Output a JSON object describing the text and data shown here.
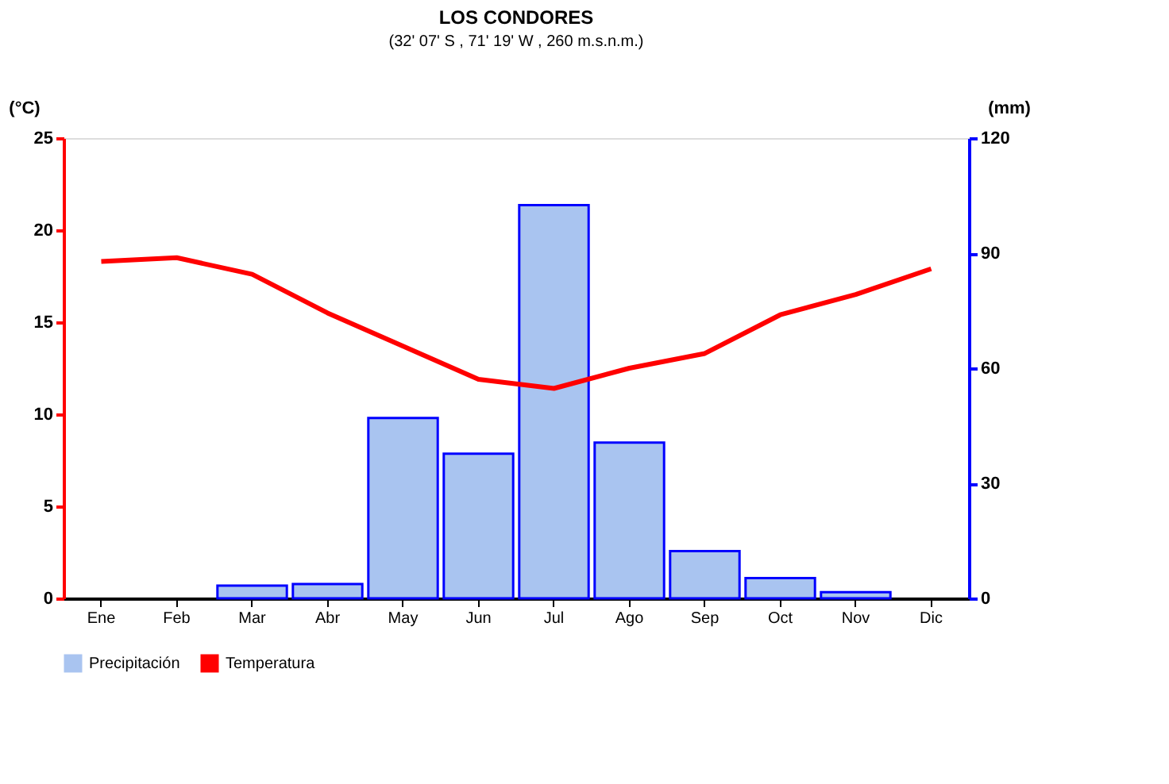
{
  "chart_data": {
    "type": "bar",
    "title": "LOS CONDORES",
    "subtitle": "(32' 07' S , 71' 19' W , 260 m.s.n.m.)",
    "ylabel": "(°C)",
    "y2label": "(mm)",
    "categories": [
      "Ene",
      "Feb",
      "Mar",
      "Abr",
      "May",
      "Jun",
      "Jul",
      "Ago",
      "Sep",
      "Oct",
      "Nov",
      "Dic"
    ],
    "series": [
      {
        "name": "Precipitación",
        "axis": "y2",
        "color": "#a9c4f0",
        "values": [
          0,
          0,
          3.3,
          3.7,
          47,
          37.7,
          102.5,
          40.6,
          12.3,
          5.3,
          1.6,
          0
        ]
      },
      {
        "name": "Temperatura",
        "type": "line",
        "color": "#ff0000",
        "values": [
          18.3,
          18.5,
          17.6,
          15.5,
          13.7,
          11.9,
          11.4,
          12.5,
          13.3,
          15.4,
          16.5,
          17.9
        ]
      }
    ],
    "ylim": [
      0,
      25
    ],
    "yticks": [
      0,
      5,
      10,
      15,
      20,
      25
    ],
    "y2lim": [
      0,
      120
    ],
    "y2ticks": [
      0,
      30,
      60,
      90,
      120
    ],
    "grid": false,
    "legend": "bottom",
    "marker": "none",
    "line_style": "solid"
  }
}
